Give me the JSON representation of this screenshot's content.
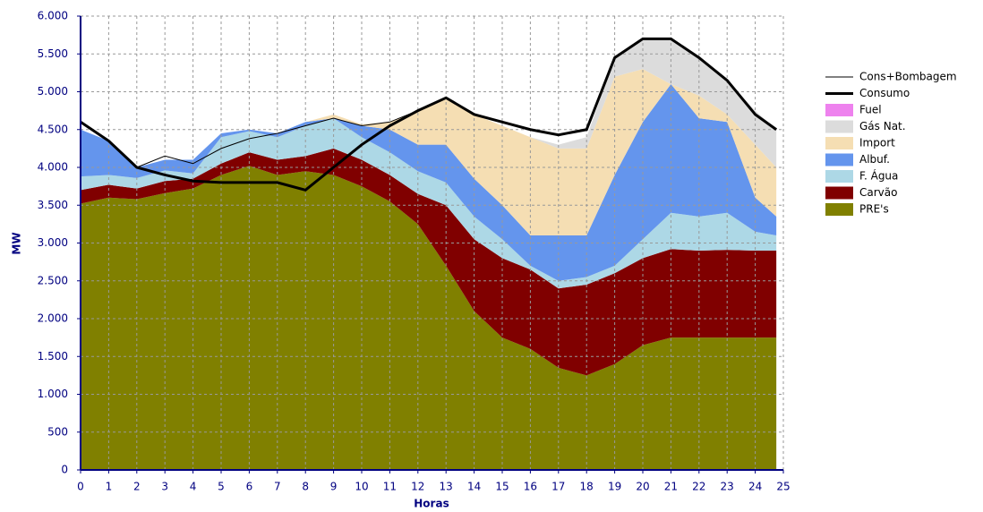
{
  "chart_data": {
    "type": "area",
    "stacked": true,
    "x_label": "Horas",
    "y_label": "MW",
    "x": [
      0,
      1,
      2,
      3,
      4,
      5,
      6,
      7,
      8,
      9,
      10,
      11,
      12,
      13,
      14,
      15,
      16,
      17,
      18,
      19,
      20,
      21,
      22,
      23,
      24,
      24.75
    ],
    "xlim": [
      0,
      25
    ],
    "xticks": [
      0,
      1,
      2,
      3,
      4,
      5,
      6,
      7,
      8,
      9,
      10,
      11,
      12,
      13,
      14,
      15,
      16,
      17,
      18,
      19,
      20,
      21,
      22,
      23,
      24,
      25
    ],
    "ylim": [
      0,
      6000
    ],
    "yticks": [
      0,
      500,
      {
        "value": 1000,
        "label": "1.000"
      },
      {
        "value": 1500,
        "label": "1.500"
      },
      {
        "value": 2000,
        "label": "2.000"
      },
      {
        "value": 2500,
        "label": "2.500"
      },
      {
        "value": 3000,
        "label": "3.000"
      },
      {
        "value": 3500,
        "label": "3.500"
      },
      {
        "value": 4000,
        "label": "4.000"
      },
      {
        "value": 4500,
        "label": "4.500"
      },
      {
        "value": 5000,
        "label": "5.000"
      },
      {
        "value": 5500,
        "label": "5.500"
      },
      {
        "value": 6000,
        "label": "6.000"
      }
    ],
    "grid": true,
    "series": [
      {
        "name": "Cons+Bombagem",
        "color": "#000000",
        "type": "line",
        "width": 1,
        "values": [
          4600,
          4350,
          4000,
          4150,
          4050,
          4250,
          4380,
          4450,
          4550,
          4650,
          4550,
          4600,
          4750,
          4920,
          4700,
          4600,
          4500,
          4430,
          4500,
          5450,
          5700,
          5700,
          5450,
          5150,
          4700,
          4500
        ]
      },
      {
        "name": "Consumo",
        "color": "#000000",
        "type": "line",
        "width": 3,
        "values": [
          4600,
          4350,
          4000,
          3900,
          3820,
          3800,
          3800,
          3800,
          3700,
          4000,
          4300,
          4550,
          4750,
          4920,
          4700,
          4600,
          4500,
          4430,
          4500,
          5450,
          5700,
          5700,
          5450,
          5150,
          4700,
          4500
        ]
      },
      {
        "name": "Fuel",
        "color": "#ee82ee",
        "values": [
          0,
          0,
          0,
          0,
          0,
          0,
          0,
          0,
          0,
          0,
          0,
          0,
          0,
          0,
          0,
          0,
          0,
          0,
          0,
          0,
          0,
          0,
          0,
          0,
          0,
          0
        ]
      },
      {
        "name": "Gás Nat.",
        "color": "#dcdcdc",
        "values": [
          0,
          0,
          0,
          0,
          0,
          0,
          0,
          0,
          0,
          0,
          0,
          0,
          0,
          0,
          0,
          0,
          0,
          50,
          150,
          250,
          400,
          600,
          500,
          450,
          450,
          500
        ]
      },
      {
        "name": "Import",
        "color": "#f5deb3",
        "values": [
          0,
          0,
          0,
          0,
          0,
          0,
          0,
          0,
          0,
          50,
          20,
          100,
          450,
          600,
          850,
          1050,
          1300,
          1150,
          1150,
          1300,
          700,
          0,
          300,
          100,
          700,
          650
        ]
      },
      {
        "name": "Albuf.",
        "color": "#6495ed",
        "values": [
          620,
          450,
          140,
          140,
          180,
          50,
          20,
          50,
          50,
          0,
          150,
          300,
          350,
          500,
          500,
          450,
          400,
          600,
          550,
          1200,
          1550,
          1700,
          1300,
          1200,
          450,
          250
        ]
      },
      {
        "name": "F. Água",
        "color": "#add8e6",
        "values": [
          180,
          130,
          140,
          140,
          70,
          350,
          280,
          300,
          400,
          400,
          300,
          300,
          300,
          300,
          300,
          250,
          50,
          100,
          100,
          100,
          250,
          480,
          450,
          490,
          250,
          200
        ]
      },
      {
        "name": "Carvão",
        "color": "#800000",
        "values": [
          180,
          170,
          140,
          160,
          130,
          150,
          180,
          200,
          200,
          350,
          350,
          350,
          400,
          800,
          950,
          1050,
          1050,
          1050,
          1200,
          1200,
          1150,
          1170,
          1150,
          1160,
          1150,
          1150
        ]
      },
      {
        "name": "PRE's",
        "color": "#808000",
        "values": [
          3520,
          3600,
          3580,
          3660,
          3720,
          3900,
          4020,
          3900,
          3950,
          3900,
          3750,
          3550,
          3250,
          2700,
          2100,
          1750,
          1600,
          1350,
          1250,
          1400,
          1650,
          1750,
          1750,
          1750,
          1750,
          1750
        ]
      }
    ]
  }
}
